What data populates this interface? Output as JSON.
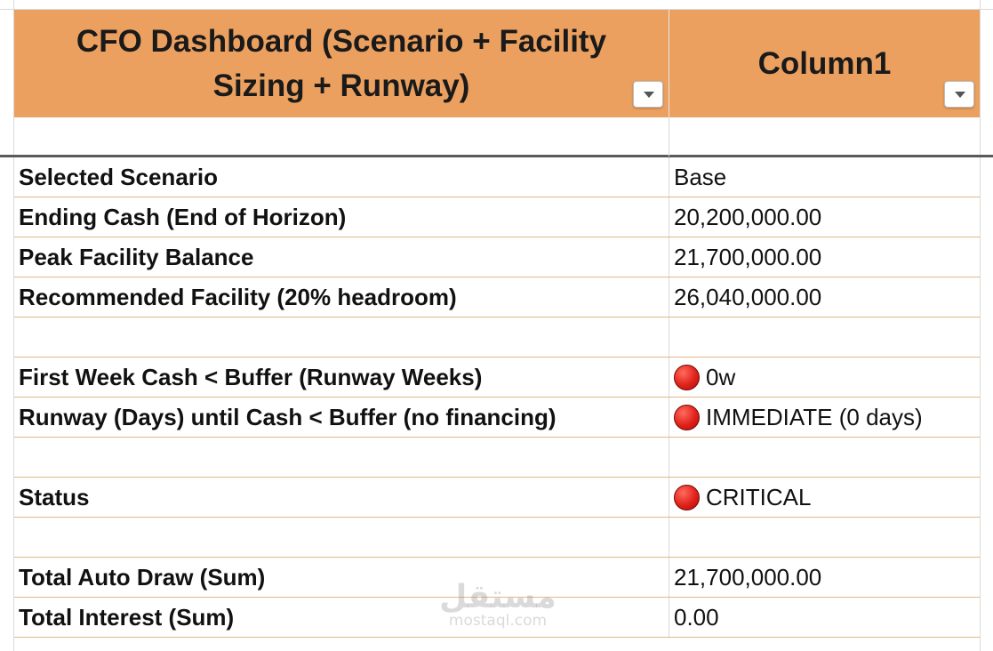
{
  "header": {
    "col1_title": "CFO Dashboard (Scenario + Facility Sizing + Runway)",
    "col2_title": "Column1"
  },
  "rows": [
    {
      "label": "",
      "value": ""
    },
    {
      "label": "Selected Scenario",
      "value": "Base"
    },
    {
      "label": "Ending Cash (End of Horizon)",
      "value": "20,200,000.00"
    },
    {
      "label": "Peak Facility Balance",
      "value": "21,700,000.00"
    },
    {
      "label": "Recommended Facility (20% headroom)",
      "value": "26,040,000.00"
    },
    {
      "label": "",
      "value": ""
    },
    {
      "label": "First Week Cash < Buffer (Runway Weeks)",
      "value": "0w",
      "indicator": "red"
    },
    {
      "label": "Runway (Days) until Cash < Buffer (no financing)",
      "value": "IMMEDIATE (0 days)",
      "indicator": "red"
    },
    {
      "label": "",
      "value": ""
    },
    {
      "label": "Status",
      "value": "CRITICAL",
      "indicator": "red"
    },
    {
      "label": "",
      "value": ""
    },
    {
      "label": "Total Auto Draw (Sum)",
      "value": "21,700,000.00"
    },
    {
      "label": "Total Interest (Sum)",
      "value": "0.00"
    }
  ],
  "watermark": {
    "arabic": "مستقل",
    "latin": "mostaql.com"
  },
  "colors": {
    "header_bg": "#eba05f",
    "row_border": "#e6b58a",
    "status_red": "#e0211b"
  }
}
